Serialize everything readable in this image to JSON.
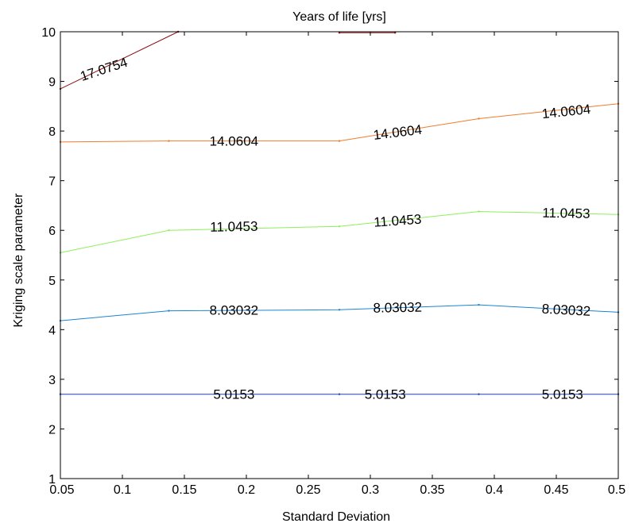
{
  "chart_data": {
    "type": "line",
    "chart_kind": "contour",
    "title": "Years of life [yrs]",
    "xlabel": "Standard Deviation",
    "ylabel": "Kriging scale parameter",
    "xlim": [
      0.05,
      0.5
    ],
    "ylim": [
      1,
      10
    ],
    "xticks": [
      "0.05",
      "0.1",
      "0.15",
      "0.2",
      "0.25",
      "0.3",
      "0.35",
      "0.4",
      "0.45",
      "0.5"
    ],
    "yticks": [
      "1",
      "2",
      "3",
      "4",
      "5",
      "6",
      "7",
      "8",
      "9",
      "10"
    ],
    "grid": false,
    "series": [
      {
        "name": "5.0153",
        "color": "#1f3fb5",
        "x": [
          0.05,
          0.275,
          0.3875,
          0.5
        ],
        "y": [
          2.7,
          2.7,
          2.7,
          2.7
        ],
        "labels": [
          {
            "text": "5.0153",
            "x": 0.19,
            "y": 2.7,
            "angle": 0
          },
          {
            "text": "5.0153",
            "x": 0.312,
            "y": 2.7,
            "angle": 0
          },
          {
            "text": "5.0153",
            "x": 0.455,
            "y": 2.7,
            "angle": 0
          }
        ]
      },
      {
        "name": "8.03032",
        "color": "#1a84d4",
        "x": [
          0.05,
          0.1375,
          0.275,
          0.3875,
          0.5
        ],
        "y": [
          4.18,
          4.38,
          4.4,
          4.5,
          4.35
        ],
        "labels": [
          {
            "text": "8.03032",
            "x": 0.19,
            "y": 4.4,
            "angle": 0
          },
          {
            "text": "8.03032",
            "x": 0.322,
            "y": 4.45,
            "angle": -1
          },
          {
            "text": "8.03032",
            "x": 0.458,
            "y": 4.4,
            "angle": 3
          }
        ]
      },
      {
        "name": "11.0453",
        "color": "#8ef05a",
        "x": [
          0.05,
          0.1375,
          0.275,
          0.3875,
          0.5
        ],
        "y": [
          5.55,
          6.0,
          6.08,
          6.38,
          6.32
        ],
        "labels": [
          {
            "text": "11.0453",
            "x": 0.19,
            "y": 6.08,
            "angle": -1
          },
          {
            "text": "11.0453",
            "x": 0.322,
            "y": 6.2,
            "angle": -4
          },
          {
            "text": "11.0453",
            "x": 0.458,
            "y": 6.35,
            "angle": 1
          }
        ]
      },
      {
        "name": "14.0604",
        "color": "#f07c2c",
        "x": [
          0.05,
          0.1375,
          0.275,
          0.3875,
          0.5
        ],
        "y": [
          7.78,
          7.8,
          7.8,
          8.25,
          8.55
        ],
        "labels": [
          {
            "text": "14.0604",
            "x": 0.19,
            "y": 7.8,
            "angle": 0
          },
          {
            "text": "14.0604",
            "x": 0.322,
            "y": 7.98,
            "angle": -7
          },
          {
            "text": "14.0604",
            "x": 0.458,
            "y": 8.4,
            "angle": -6
          }
        ]
      },
      {
        "name": "17.0754",
        "color": "#8c1414",
        "x": [
          0.05,
          0.145
        ],
        "y": [
          8.85,
          10.0
        ],
        "labels": [
          {
            "text": "17.0754",
            "x": 0.085,
            "y": 9.25,
            "angle": -18
          }
        ]
      },
      {
        "name": "",
        "color": "#8c1414",
        "x": [
          0.275,
          0.32
        ],
        "y": [
          9.98,
          9.98
        ],
        "labels": []
      }
    ]
  }
}
